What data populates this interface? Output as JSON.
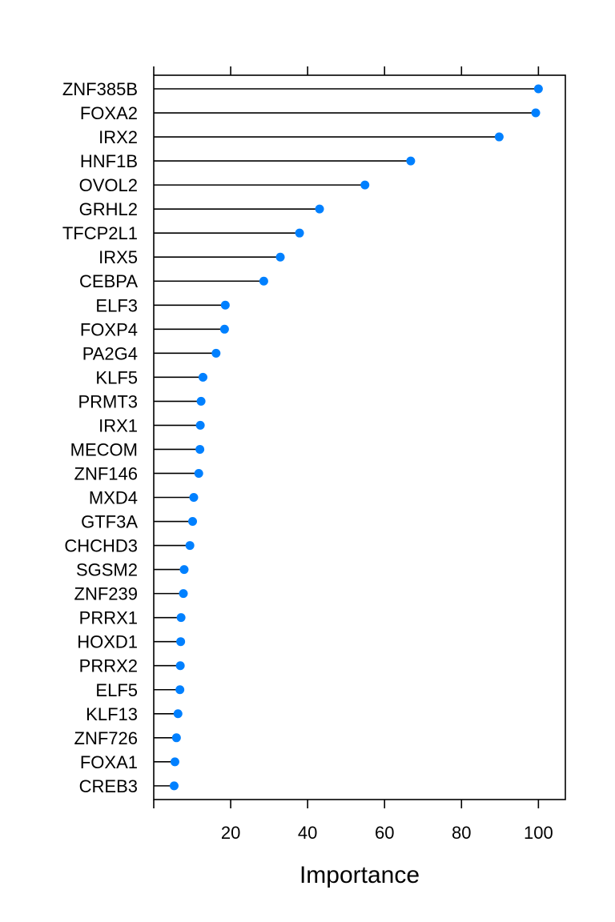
{
  "chart_data": {
    "type": "dot",
    "title": "",
    "xlabel": "Importance",
    "ylabel": "",
    "xlim": [
      0,
      107
    ],
    "xticks": [
      20,
      40,
      60,
      80,
      100
    ],
    "grid": false,
    "point_color": "#0080ff",
    "stem_color": "#000000",
    "categories": [
      "ZNF385B",
      "FOXA2",
      "IRX2",
      "HNF1B",
      "OVOL2",
      "GRHL2",
      "TFCP2L1",
      "IRX5",
      "CEBPA",
      "ELF3",
      "FOXP4",
      "PA2G4",
      "KLF5",
      "PRMT3",
      "IRX1",
      "MECOM",
      "ZNF146",
      "MXD4",
      "GTF3A",
      "CHCHD3",
      "SGSM2",
      "ZNF239",
      "PRRX1",
      "HOXD1",
      "PRRX2",
      "ELF5",
      "KLF13",
      "ZNF726",
      "FOXA1",
      "CREB3"
    ],
    "values": [
      100.0,
      99.3,
      89.8,
      66.8,
      54.9,
      43.1,
      37.9,
      32.9,
      28.6,
      18.6,
      18.4,
      16.2,
      12.8,
      12.3,
      12.1,
      12.0,
      11.7,
      10.4,
      10.1,
      9.4,
      7.9,
      7.7,
      7.1,
      7.0,
      6.9,
      6.8,
      6.3,
      5.9,
      5.5,
      5.3
    ]
  }
}
